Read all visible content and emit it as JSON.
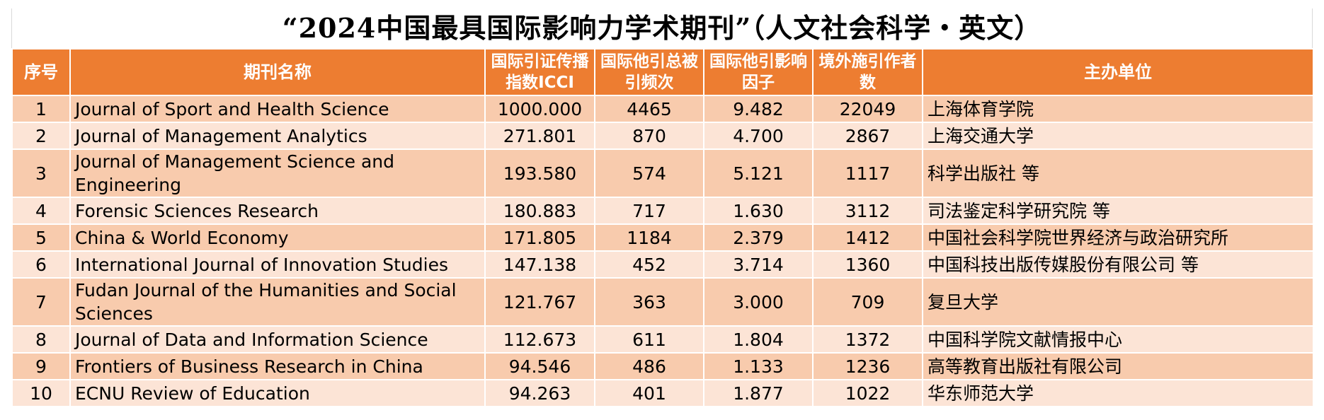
{
  "title": "“2024中国最具国际影响力学术期刊”（人文社会科学・英文）",
  "columns": {
    "no": "序号",
    "name": "期刊名称",
    "icci": "国际引证传播指数ICCI",
    "cites": "国际他引总被引频次",
    "if": "国际他引影响因子",
    "authors": "境外施引作者数",
    "org": "主办单位"
  },
  "rows": [
    {
      "no": "1",
      "name": "Journal of Sport and Health Science",
      "icci": "1000.000",
      "cites": "4465",
      "if": "9.482",
      "authors": "22049",
      "org": "上海体育学院"
    },
    {
      "no": "2",
      "name": "Journal of Management Analytics",
      "icci": "271.801",
      "cites": "870",
      "if": "4.700",
      "authors": "2867",
      "org": "上海交通大学"
    },
    {
      "no": "3",
      "name": "Journal of Management Science and Engineering",
      "icci": "193.580",
      "cites": "574",
      "if": "5.121",
      "authors": "1117",
      "org": "科学出版社 等"
    },
    {
      "no": "4",
      "name": "Forensic Sciences Research",
      "icci": "180.883",
      "cites": "717",
      "if": "1.630",
      "authors": "3112",
      "org": "司法鉴定科学研究院 等"
    },
    {
      "no": "5",
      "name": "China & World Economy",
      "icci": "171.805",
      "cites": "1184",
      "if": "2.379",
      "authors": "1412",
      "org": "中国社会科学院世界经济与政治研究所"
    },
    {
      "no": "6",
      "name": "International Journal of Innovation Studies",
      "icci": "147.138",
      "cites": "452",
      "if": "3.714",
      "authors": "1360",
      "org": "中国科技出版传媒股份有限公司 等"
    },
    {
      "no": "7",
      "name": "Fudan Journal of the Humanities and Social Sciences",
      "icci": "121.767",
      "cites": "363",
      "if": "3.000",
      "authors": "709",
      "org": "复旦大学"
    },
    {
      "no": "8",
      "name": "Journal of Data and Information Science",
      "icci": "112.673",
      "cites": "611",
      "if": "1.804",
      "authors": "1372",
      "org": "中国科学院文献情报中心"
    },
    {
      "no": "9",
      "name": "Frontiers of Business Research in China",
      "icci": "94.546",
      "cites": "486",
      "if": "1.133",
      "authors": "1236",
      "org": "高等教育出版社有限公司"
    },
    {
      "no": "10",
      "name": "ECNU Review of Education",
      "icci": "94.263",
      "cites": "401",
      "if": "1.877",
      "authors": "1022",
      "org": "华东师范大学"
    }
  ],
  "colors": {
    "header_bg": "#ed7d31",
    "header_text": "#ffffff",
    "row_dark": "#f8cbad",
    "row_light": "#fce4d6"
  }
}
